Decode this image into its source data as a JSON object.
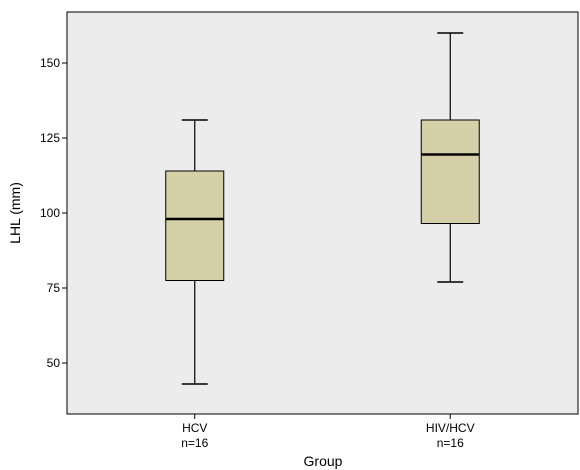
{
  "chart_data": {
    "type": "boxplot",
    "title": "",
    "xlabel": "Group",
    "ylabel": "LHL (mm)",
    "ylim": [
      33,
      167
    ],
    "yticks": [
      50,
      75,
      100,
      125,
      150
    ],
    "grid": false,
    "background_color": "#ececec",
    "box_color": "#d6d0a8",
    "categories": [
      {
        "name": "HCV",
        "n_label": "n=16"
      },
      {
        "name": "HIV/HCV",
        "n_label": "n=16"
      }
    ],
    "boxes": [
      {
        "min": 43,
        "q1": 77.5,
        "median": 98,
        "q3": 114,
        "max": 131
      },
      {
        "min": 77,
        "q1": 96.5,
        "median": 119.5,
        "q3": 131,
        "max": 160
      }
    ]
  }
}
